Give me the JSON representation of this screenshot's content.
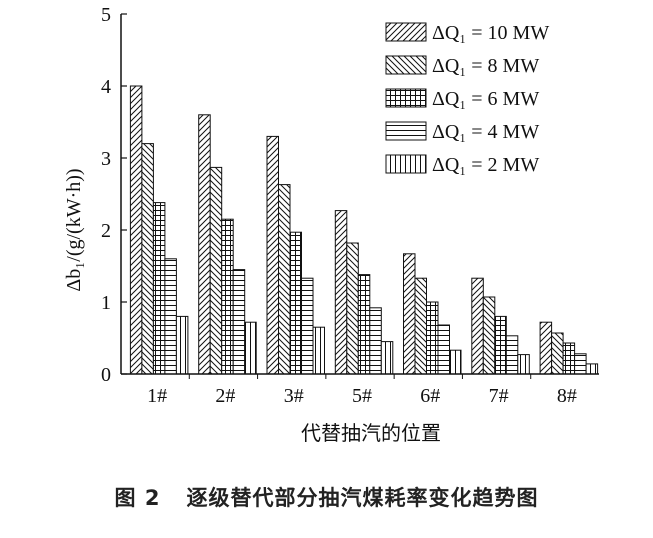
{
  "chart_data": {
    "type": "bar",
    "categories": [
      "1#",
      "2#",
      "3#",
      "5#",
      "6#",
      "7#",
      "8#"
    ],
    "series": [
      {
        "name": "ΔQ₁ = 10 MW",
        "pattern": "diag-right",
        "values": [
          4.0,
          3.6,
          3.3,
          2.27,
          1.67,
          1.33,
          0.72
        ]
      },
      {
        "name": "ΔQ₁ = 8 MW",
        "pattern": "diag-left",
        "values": [
          3.2,
          2.87,
          2.63,
          1.82,
          1.33,
          1.07,
          0.57
        ]
      },
      {
        "name": "ΔQ₁ = 6 MW",
        "pattern": "grid",
        "values": [
          2.38,
          2.15,
          1.97,
          1.38,
          1.0,
          0.8,
          0.43
        ]
      },
      {
        "name": "ΔQ₁ = 4 MW",
        "pattern": "horizontal",
        "values": [
          1.6,
          1.45,
          1.33,
          0.92,
          0.68,
          0.53,
          0.28
        ]
      },
      {
        "name": "ΔQ₁ = 2 MW",
        "pattern": "vertical",
        "values": [
          0.8,
          0.72,
          0.65,
          0.45,
          0.33,
          0.27,
          0.14
        ]
      }
    ],
    "xlabel": "代替抽汽的位置",
    "ylabel": "Δb₁/(g/(kW·h))",
    "ylim": [
      0,
      5
    ],
    "yticks": [
      "0",
      "1",
      "2",
      "3",
      "4",
      "5"
    ],
    "legend_position": "top-right",
    "grid": false
  },
  "caption": {
    "label": "图 2",
    "text": "逐级替代部分抽汽煤耗率变化趋势图"
  }
}
